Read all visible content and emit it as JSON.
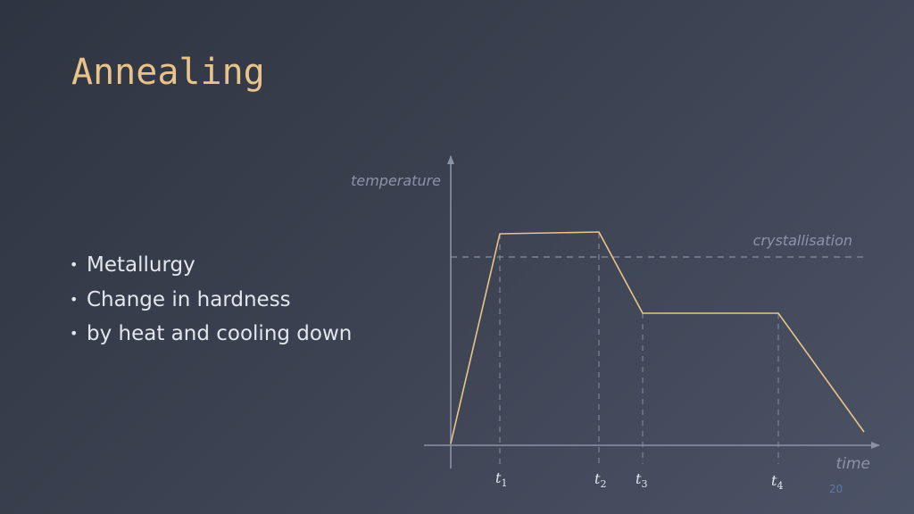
{
  "slide": {
    "title": "Annealing",
    "bullets": [
      "Metallurgy",
      "Change in hardness",
      "by heat and cooling down"
    ],
    "page_number": "20"
  },
  "diagram": {
    "y_axis_label": "temperature",
    "x_axis_label": "time",
    "threshold_label": "crystallisation",
    "time_markers": [
      {
        "base": "t",
        "sub": "1"
      },
      {
        "base": "t",
        "sub": "2"
      },
      {
        "base": "t",
        "sub": "3"
      },
      {
        "base": "t",
        "sub": "4"
      }
    ],
    "colors": {
      "curve": "#e8c48a",
      "axis": "#8a93a6",
      "dashed": "#7b8497",
      "label": "#8b94a7",
      "accent_title": "#e8c48a"
    }
  }
}
